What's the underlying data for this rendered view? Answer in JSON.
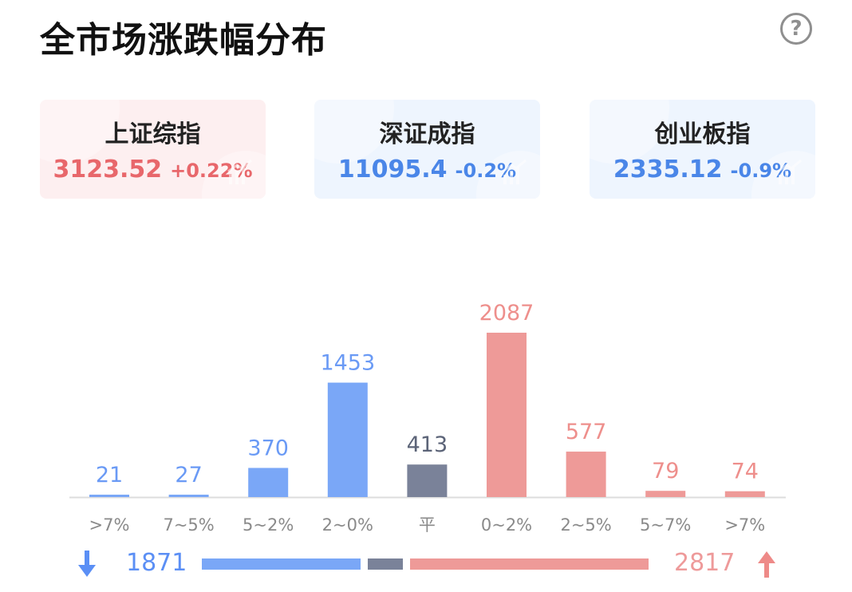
{
  "title": "全市场涨跌幅分布",
  "help_icon": "question-circle-icon",
  "indices": [
    {
      "name": "上证综指",
      "value": "3123.52",
      "change": "+0.22%",
      "direction": "up"
    },
    {
      "name": "深证成指",
      "value": "11095.4",
      "change": "-0.2%",
      "direction": "down"
    },
    {
      "name": "创业板指",
      "value": "2335.12",
      "change": "-0.9%",
      "direction": "down"
    }
  ],
  "colors": {
    "down": "#7aa7f7",
    "flat": "#7a8299",
    "up": "#ee9a98",
    "axis": "#dddddd",
    "tick_label": "#8a8a8a"
  },
  "chart_data": {
    "type": "bar",
    "categories": [
      ">7%",
      "7~5%",
      "5~2%",
      "2~0%",
      "平",
      "0~2%",
      "2~5%",
      "5~7%",
      ">7%"
    ],
    "values": [
      21,
      27,
      370,
      1453,
      413,
      2087,
      577,
      79,
      74
    ],
    "bar_groups": [
      "down",
      "down",
      "down",
      "down",
      "flat",
      "up",
      "up",
      "up",
      "up"
    ],
    "ylim": [
      0,
      2087
    ],
    "grid": false
  },
  "summary": {
    "down_total": "1871",
    "up_total": "2817",
    "down_icon": "arrow-down-icon",
    "up_icon": "arrow-up-icon"
  }
}
